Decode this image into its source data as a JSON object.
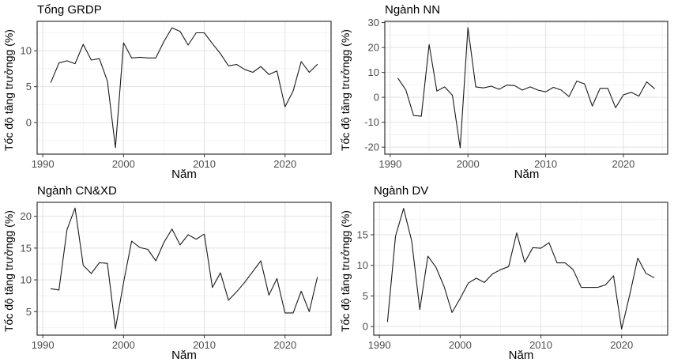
{
  "figure": {
    "background": "#ffffff"
  },
  "style": {
    "line_color": "#1a1a1a",
    "panel_border_color": "#333333",
    "grid_major_color": "#e2e2e2",
    "grid_minor_color": "#f0f0f0",
    "tick_mark_color": "#333333",
    "tick_label_color": "#4d4d4d",
    "text_color": "#000000"
  },
  "chart_data": [
    {
      "type": "line",
      "title": "Tổng GRDP",
      "xlabel": "Năm",
      "ylabel": "Tốc độ tăng trưởngg (%)",
      "x_ticks": [
        1990,
        2000,
        2010,
        2020
      ],
      "y_ticks": [
        0,
        5,
        10
      ],
      "xlim": [
        1989.3,
        2025.7
      ],
      "ylim": [
        -4.4,
        14.1
      ],
      "grid": "major+minor",
      "legend": "none",
      "x": [
        1991,
        1992,
        1993,
        1994,
        1995,
        1996,
        1997,
        1998,
        1999,
        2000,
        2001,
        2002,
        2003,
        2004,
        2005,
        2006,
        2007,
        2008,
        2009,
        2010,
        2011,
        2012,
        2013,
        2014,
        2015,
        2016,
        2017,
        2018,
        2019,
        2020,
        2021,
        2022,
        2023,
        2024
      ],
      "values": [
        5.6,
        8.3,
        8.6,
        8.2,
        10.9,
        8.7,
        8.9,
        5.8,
        -3.5,
        11.1,
        9.0,
        9.1,
        9.0,
        9.0,
        11.3,
        13.2,
        12.7,
        10.8,
        12.5,
        12.5,
        11.0,
        9.6,
        7.9,
        8.1,
        7.4,
        7.0,
        7.8,
        6.7,
        7.2,
        2.2,
        4.4,
        8.5,
        7.0,
        8.1
      ]
    },
    {
      "type": "line",
      "title": "Ngành NN",
      "xlabel": "Năm",
      "ylabel": "Tốc độ tăng trưởngg (%)",
      "x_ticks": [
        1990,
        2000,
        2010,
        2020
      ],
      "y_ticks": [
        -20,
        -10,
        0,
        10,
        20,
        30
      ],
      "xlim": [
        1989.3,
        2025.7
      ],
      "ylim": [
        -22.8,
        30.5
      ],
      "grid": "major+minor",
      "legend": "none",
      "x": [
        1991,
        1992,
        1993,
        1994,
        1995,
        1996,
        1997,
        1998,
        1999,
        2000,
        2001,
        2002,
        2003,
        2004,
        2005,
        2006,
        2007,
        2008,
        2009,
        2010,
        2011,
        2012,
        2013,
        2014,
        2015,
        2016,
        2017,
        2018,
        2019,
        2020,
        2021,
        2022,
        2023,
        2024
      ],
      "values": [
        7.6,
        3.0,
        -7.3,
        -7.6,
        21.2,
        2.5,
        4.2,
        0.8,
        -20.3,
        28.0,
        4.2,
        3.8,
        4.5,
        3.2,
        4.9,
        4.7,
        2.9,
        4.2,
        2.9,
        2.2,
        4.0,
        2.9,
        0.3,
        6.5,
        5.4,
        -3.5,
        3.6,
        3.6,
        -4.2,
        1.0,
        2.0,
        0.5,
        6.2,
        3.5
      ]
    },
    {
      "type": "line",
      "title": "Ngành CN&XD",
      "xlabel": "Năm",
      "ylabel": "Tốc độ tăng trưởngg (%)",
      "x_ticks": [
        1990,
        2000,
        2010,
        2020
      ],
      "y_ticks": [
        5,
        10,
        15,
        20
      ],
      "xlim": [
        1989.3,
        2025.7
      ],
      "ylim": [
        1.3,
        22.2
      ],
      "grid": "major+minor",
      "legend": "none",
      "x": [
        1991,
        1992,
        1993,
        1994,
        1995,
        1996,
        1997,
        1998,
        1999,
        2000,
        2001,
        2002,
        2003,
        2004,
        2005,
        2006,
        2007,
        2008,
        2009,
        2010,
        2011,
        2012,
        2013,
        2014,
        2015,
        2016,
        2017,
        2018,
        2019,
        2020,
        2021,
        2022,
        2023,
        2024
      ],
      "values": [
        8.6,
        8.4,
        17.9,
        21.3,
        12.3,
        11.0,
        12.7,
        12.6,
        2.3,
        9.6,
        16.1,
        15.1,
        14.8,
        13.0,
        15.9,
        18.0,
        15.5,
        17.1,
        16.4,
        17.2,
        8.8,
        11.1,
        6.8,
        8.1,
        9.6,
        11.3,
        13.0,
        7.6,
        10.2,
        4.8,
        4.8,
        8.2,
        5.0,
        10.4
      ]
    },
    {
      "type": "line",
      "title": "Ngành DV",
      "xlabel": "Năm",
      "ylabel": "Tốc độ tăng trưởngg (%)",
      "x_ticks": [
        1990,
        2000,
        2010,
        2020
      ],
      "y_ticks": [
        0,
        5,
        10,
        15
      ],
      "xlim": [
        1989.3,
        2025.7
      ],
      "ylim": [
        -1.4,
        20.3
      ],
      "grid": "major+minor",
      "legend": "none",
      "x": [
        1991,
        1992,
        1993,
        1994,
        1995,
        1996,
        1997,
        1998,
        1999,
        2000,
        2001,
        2002,
        2003,
        2004,
        2005,
        2006,
        2007,
        2008,
        2009,
        2010,
        2011,
        2012,
        2013,
        2014,
        2015,
        2016,
        2017,
        2018,
        2019,
        2020,
        2021,
        2022,
        2023,
        2024
      ],
      "values": [
        0.8,
        14.8,
        19.3,
        14.0,
        2.8,
        11.5,
        9.7,
        6.6,
        2.3,
        4.6,
        7.1,
        7.9,
        7.2,
        8.6,
        9.3,
        9.8,
        15.3,
        10.5,
        12.9,
        12.8,
        13.7,
        10.4,
        10.4,
        9.3,
        6.4,
        6.4,
        6.4,
        6.8,
        8.3,
        -0.4,
        5.2,
        11.2,
        8.7,
        8.0
      ]
    }
  ]
}
